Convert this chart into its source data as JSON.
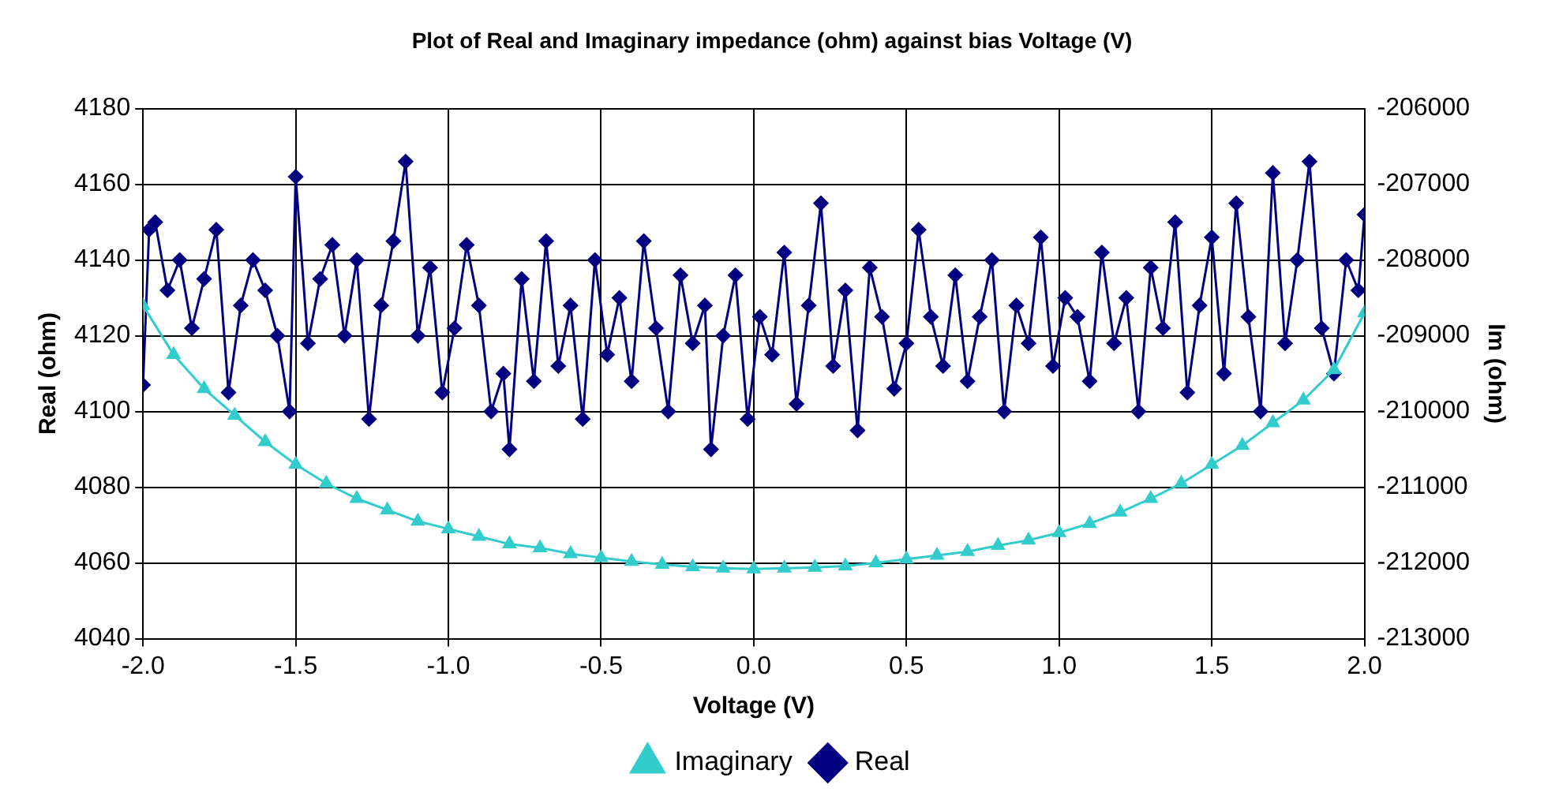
{
  "chart_data": {
    "type": "line",
    "title": "Plot of Real and Imaginary impedance (ohm) against bias Voltage (V)",
    "xlabel": "Voltage (V)",
    "ylabel": "Real (ohm)",
    "y2label": "Im (ohm)",
    "xlim": [
      -2,
      2
    ],
    "xticks": [
      {
        "value": -2,
        "label": "-2.0"
      },
      {
        "value": -1.5,
        "label": "-1.5"
      },
      {
        "value": -1,
        "label": "-1.0"
      },
      {
        "value": -0.5,
        "label": "-0.5"
      },
      {
        "value": 0,
        "label": "0.0"
      },
      {
        "value": 0.5,
        "label": "0.5"
      },
      {
        "value": 1,
        "label": "1.0"
      },
      {
        "value": 1.5,
        "label": "1.5"
      },
      {
        "value": 2,
        "label": "2.0"
      }
    ],
    "ylim": [
      4040,
      4180
    ],
    "yticks": [
      4040,
      4060,
      4080,
      4100,
      4120,
      4140,
      4160,
      4180
    ],
    "y2lim": [
      -213000,
      -206000
    ],
    "y2ticks": [
      -213000,
      -212000,
      -211000,
      -210000,
      -209000,
      -208000,
      -207000,
      -206000
    ],
    "grid": true,
    "legend": "bottom",
    "line_style": "solid",
    "series": [
      {
        "name": "Real",
        "color": "#000080",
        "marker": "diamond",
        "x": [
          -2,
          -1.98,
          -1.96,
          -1.92,
          -1.88,
          -1.84,
          -1.8,
          -1.76,
          -1.72,
          -1.68,
          -1.64,
          -1.6,
          -1.56,
          -1.52,
          -1.5,
          -1.46,
          -1.42,
          -1.38,
          -1.34,
          -1.3,
          -1.26,
          -1.22,
          -1.18,
          -1.14,
          -1.1,
          -1.06,
          -1.02,
          -0.98,
          -0.94,
          -0.9,
          -0.86,
          -0.82,
          -0.8,
          -0.76,
          -0.72,
          -0.68,
          -0.64,
          -0.6,
          -0.56,
          -0.52,
          -0.48,
          -0.44,
          -0.4,
          -0.36,
          -0.32,
          -0.28,
          -0.24,
          -0.2,
          -0.16,
          -0.14,
          -0.1,
          -0.06,
          -0.02,
          0.02,
          0.06,
          0.1,
          0.14,
          0.18,
          0.22,
          0.26,
          0.3,
          0.34,
          0.38,
          0.42,
          0.46,
          0.5,
          0.54,
          0.58,
          0.62,
          0.66,
          0.7,
          0.74,
          0.78,
          0.82,
          0.86,
          0.9,
          0.94,
          0.98,
          1.02,
          1.06,
          1.1,
          1.14,
          1.18,
          1.22,
          1.26,
          1.3,
          1.34,
          1.38,
          1.42,
          1.46,
          1.5,
          1.54,
          1.58,
          1.62,
          1.66,
          1.7,
          1.74,
          1.78,
          1.82,
          1.86,
          1.9,
          1.94,
          1.98,
          2
        ],
        "values": [
          4107,
          4148,
          4150,
          4132,
          4140,
          4122,
          4135,
          4148,
          4105,
          4128,
          4140,
          4132,
          4120,
          4100,
          4162,
          4118,
          4135,
          4144,
          4120,
          4140,
          4098,
          4128,
          4145,
          4166,
          4120,
          4138,
          4105,
          4122,
          4144,
          4128,
          4100,
          4110,
          4090,
          4135,
          4108,
          4145,
          4112,
          4128,
          4098,
          4140,
          4115,
          4130,
          4108,
          4145,
          4122,
          4100,
          4136,
          4118,
          4128,
          4090,
          4120,
          4136,
          4098,
          4125,
          4115,
          4142,
          4102,
          4128,
          4155,
          4112,
          4132,
          4095,
          4138,
          4125,
          4106,
          4118,
          4148,
          4125,
          4112,
          4136,
          4108,
          4125,
          4140,
          4100,
          4128,
          4118,
          4146,
          4112,
          4130,
          4125,
          4108,
          4142,
          4118,
          4130,
          4100,
          4138,
          4122,
          4150,
          4105,
          4128,
          4146,
          4110,
          4155,
          4125,
          4100,
          4163,
          4118,
          4140,
          4166,
          4122,
          4110,
          4140,
          4132,
          4152
        ]
      },
      {
        "name": "Imaginary",
        "color": "#33cccc",
        "marker": "triangle",
        "axis": "y2",
        "x": [
          -2,
          -1.9,
          -1.8,
          -1.7,
          -1.6,
          -1.5,
          -1.4,
          -1.3,
          -1.2,
          -1.1,
          -1,
          -0.9,
          -0.8,
          -0.7,
          -0.6,
          -0.5,
          -0.4,
          -0.3,
          -0.2,
          -0.1,
          0,
          0.1,
          0.2,
          0.3,
          0.4,
          0.5,
          0.6,
          0.7,
          0.8,
          0.9,
          1,
          1.1,
          1.2,
          1.3,
          1.4,
          1.5,
          1.6,
          1.7,
          1.8,
          1.9,
          2
        ],
        "values": [
          -208600,
          -209250,
          -209700,
          -210050,
          -210400,
          -210700,
          -210950,
          -211150,
          -211300,
          -211450,
          -211550,
          -211650,
          -211750,
          -211800,
          -211880,
          -211930,
          -211980,
          -212020,
          -212050,
          -212070,
          -212080,
          -212070,
          -212060,
          -212040,
          -212000,
          -211950,
          -211900,
          -211850,
          -211770,
          -211700,
          -211600,
          -211480,
          -211330,
          -211150,
          -210950,
          -210700,
          -210450,
          -210150,
          -209850,
          -209450,
          -208700
        ]
      }
    ]
  }
}
